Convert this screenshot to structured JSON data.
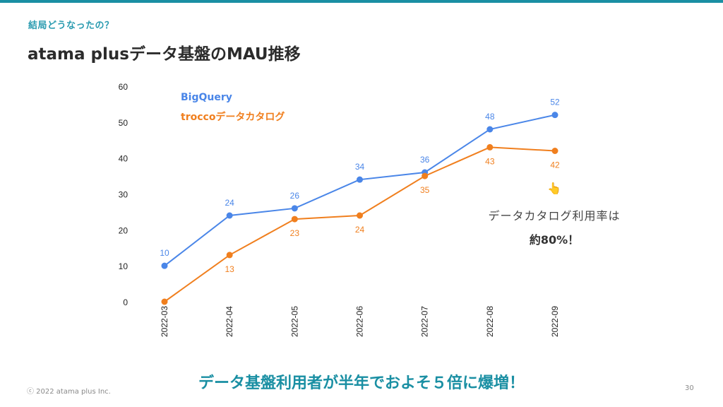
{
  "header": {
    "kicker": "結局どうなったの？",
    "title": "atama plusデータ基盤のMAU推移"
  },
  "annotation": {
    "pointer_icon": "👆",
    "line1": "データカタログ利用率は",
    "line2": "約80%！"
  },
  "footer": {
    "copyright": "ⓒ 2022 atama plus Inc.",
    "message": "データ基盤利用者が半年でおよそ５倍に爆増！",
    "page_number": "30"
  },
  "colors": {
    "accent": "#1a8fa3",
    "bigquery": "#4a86e8",
    "trocco": "#f07f1e"
  },
  "chart_data": {
    "type": "line",
    "title": "atama plusデータ基盤のMAU推移",
    "xlabel": "",
    "ylabel": "",
    "categories": [
      "2022-03",
      "2022-04",
      "2022-05",
      "2022-06",
      "2022-07",
      "2022-08",
      "2022-09"
    ],
    "ylim": [
      0,
      60
    ],
    "yticks": [
      0,
      10,
      20,
      30,
      40,
      50,
      60
    ],
    "grid": false,
    "legend": "top-left",
    "series": [
      {
        "name": "BigQuery",
        "color": "#4a86e8",
        "values": [
          10,
          24,
          26,
          34,
          36,
          48,
          52
        ],
        "labels": [
          "10",
          "24",
          "26",
          "34",
          "36",
          "48",
          "52"
        ],
        "label_position": "above"
      },
      {
        "name": "troccoデータカタログ",
        "color": "#f07f1e",
        "values": [
          0,
          13,
          23,
          24,
          35,
          43,
          42
        ],
        "labels": [
          "",
          "13",
          "23",
          "24",
          "35",
          "43",
          "42"
        ],
        "label_position": "below"
      }
    ]
  }
}
